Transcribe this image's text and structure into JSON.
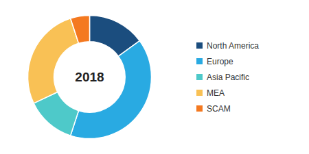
{
  "chart_data": {
    "type": "donut",
    "categories": [
      "North America",
      "Europe",
      "Asia Pacific",
      "MEA",
      "SCAM"
    ],
    "values": [
      15,
      40,
      13,
      27,
      5
    ],
    "colors": [
      "#1b4d7e",
      "#29aae2",
      "#4ec9c9",
      "#f9c155",
      "#f47920"
    ],
    "annotation": "2018",
    "legend": "right"
  }
}
